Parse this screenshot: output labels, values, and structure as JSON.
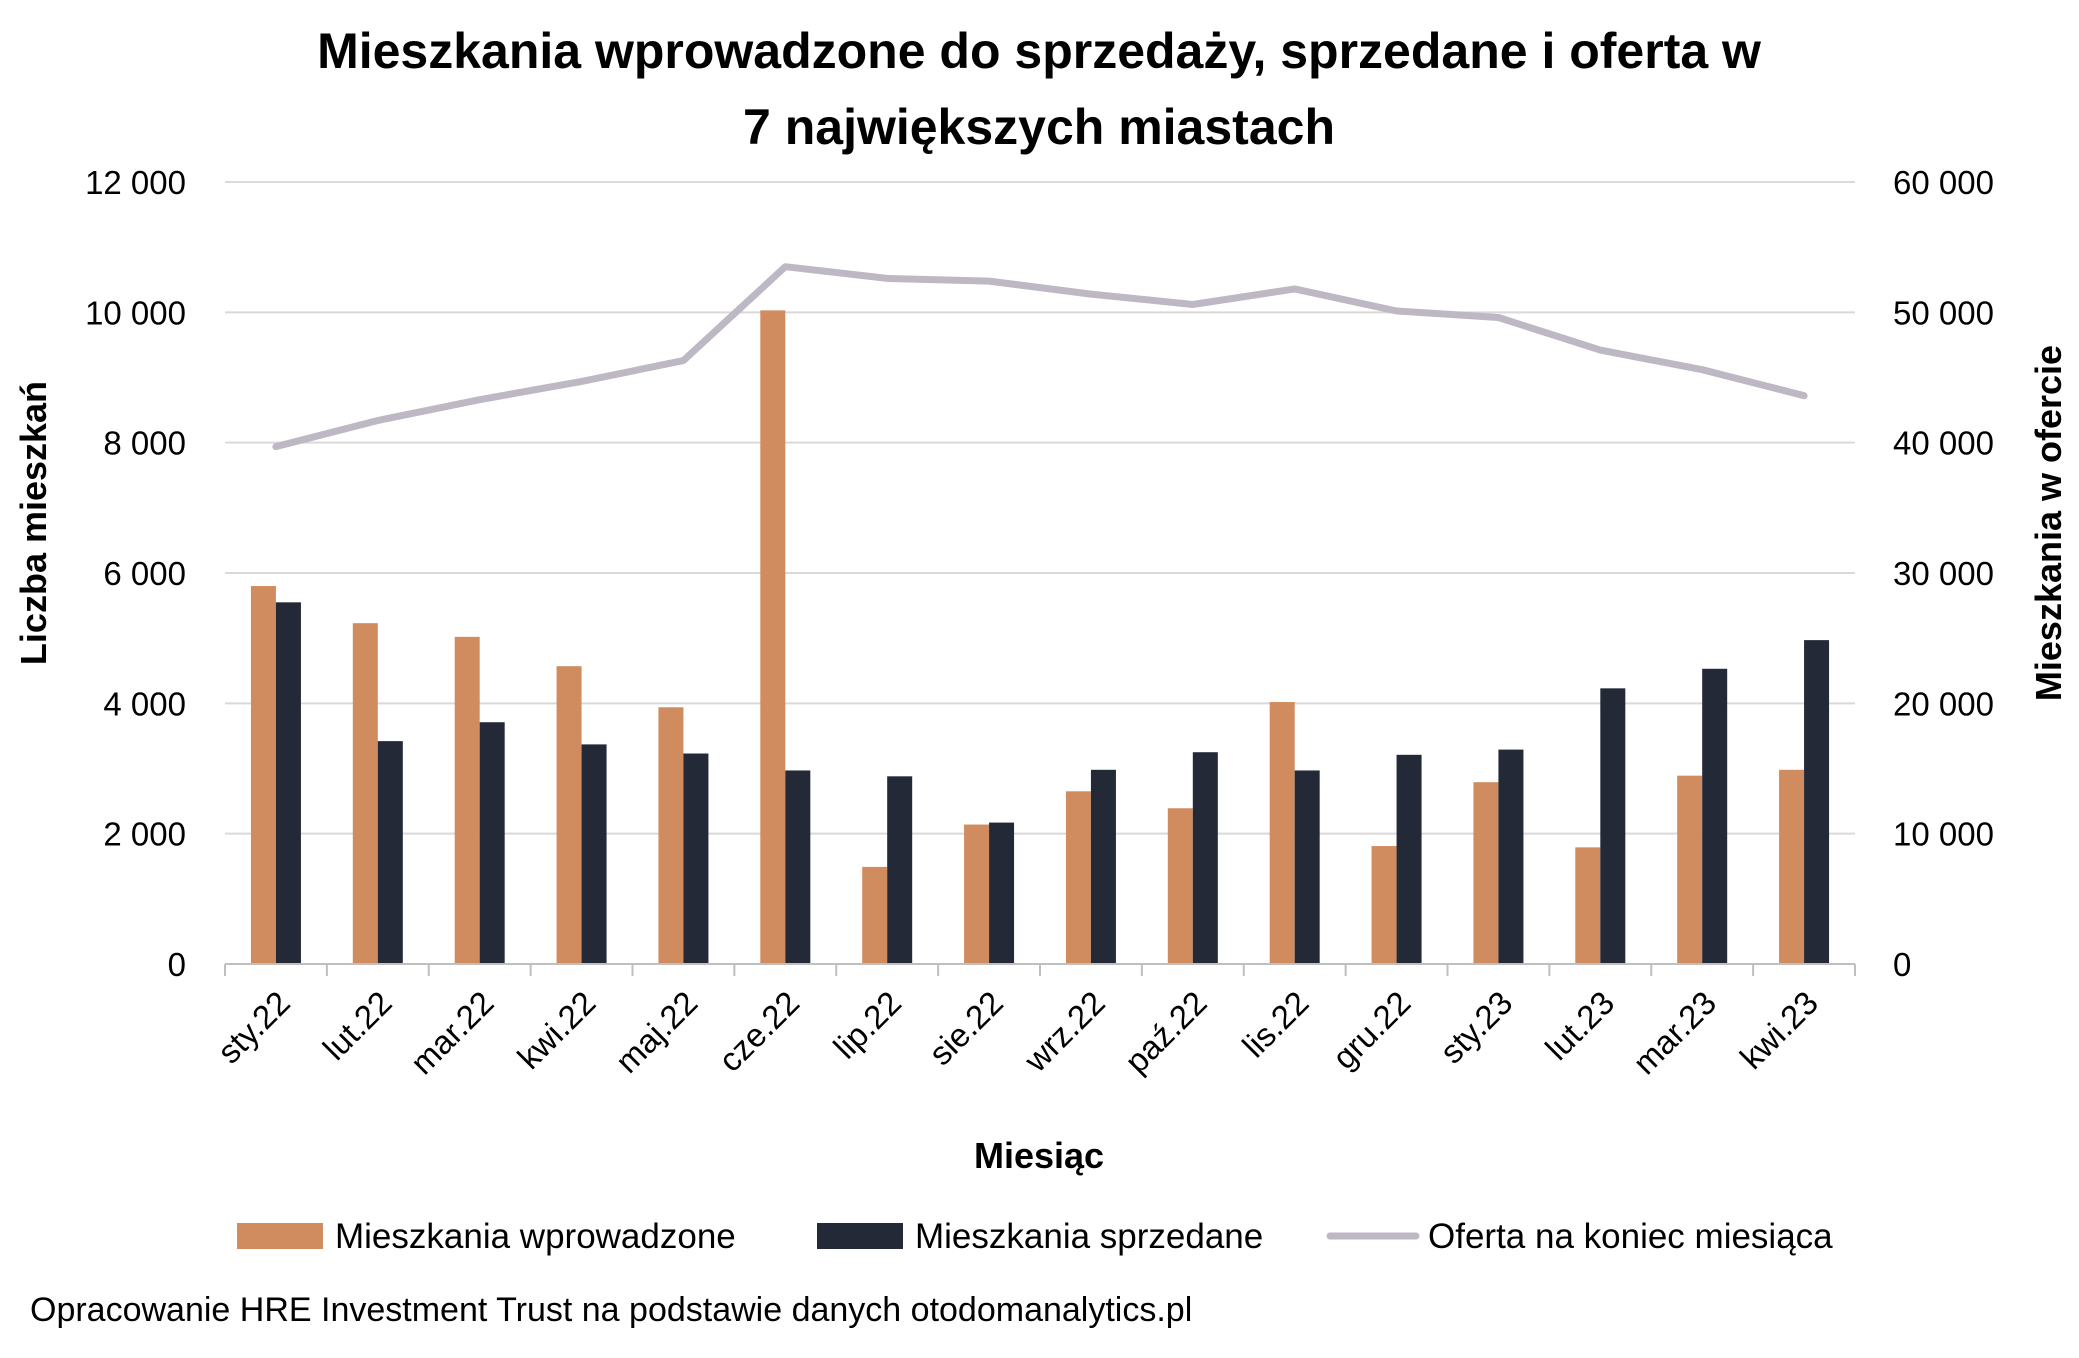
{
  "chart_data": {
    "type": "bar",
    "title_lines": [
      "Mieszkania wprowadzone do sprzedaży, sprzedane i oferta w",
      "7 największych miastach"
    ],
    "xlabel": "Miesiąc",
    "ylabel": "Liczba mieszkań",
    "ylabel_right": "Mieszkania w ofercie",
    "categories": [
      "sty.22",
      "lut.22",
      "mar.22",
      "kwi.22",
      "maj.22",
      "cze.22",
      "lip.22",
      "sie.22",
      "wrz.22",
      "paź.22",
      "lis.22",
      "gru.22",
      "sty.23",
      "lut.23",
      "mar.23",
      "kwi.23"
    ],
    "ylim": [
      0,
      12000
    ],
    "ylim_right": [
      0,
      60000
    ],
    "yticks": [
      "0",
      "2 000",
      "4 000",
      "6 000",
      "8 000",
      "10 000",
      "12 000"
    ],
    "yticks_right": [
      "0",
      "10 000",
      "20 000",
      "30 000",
      "40 000",
      "50 000",
      "60 000"
    ],
    "grid": true,
    "legend_position": "bottom",
    "series": [
      {
        "name": "Mieszkania wprowadzone",
        "kind": "bar",
        "axis": "left",
        "color": "#D08C5E",
        "values": [
          5800,
          5230,
          5020,
          4570,
          3940,
          10030,
          1490,
          2140,
          2650,
          2390,
          4020,
          1810,
          2790,
          1790,
          2890,
          2980
        ]
      },
      {
        "name": "Mieszkania sprzedane",
        "kind": "bar",
        "axis": "left",
        "color": "#242938",
        "values": [
          5550,
          3420,
          3710,
          3370,
          3230,
          2970,
          2880,
          2170,
          2980,
          3250,
          2970,
          3210,
          3290,
          4230,
          4530,
          4970
        ]
      },
      {
        "name": "Oferta na koniec miesiąca",
        "kind": "line",
        "axis": "right",
        "color": "#BDB8C3",
        "values": [
          39700,
          41700,
          43300,
          44700,
          46300,
          53500,
          52600,
          52400,
          51400,
          50600,
          51800,
          50100,
          49600,
          47100,
          45600,
          43600
        ]
      }
    ]
  },
  "source": "Opracowanie HRE Investment Trust na podstawie danych otodomanalytics.pl"
}
